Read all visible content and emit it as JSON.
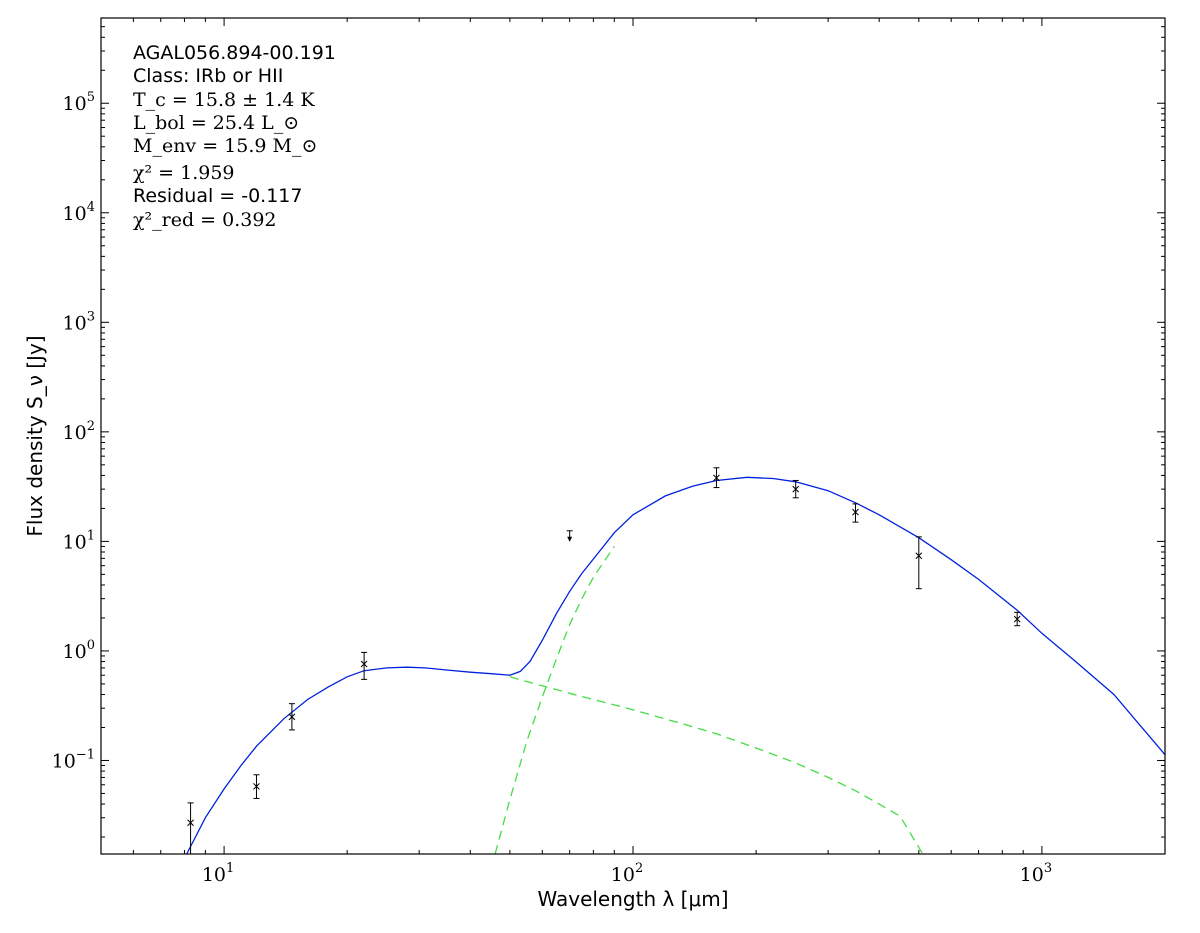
{
  "chart_data": {
    "type": "line",
    "x_scale": "log",
    "y_scale": "log",
    "xlim": [
      5,
      2000
    ],
    "ylim": [
      0.014,
      600000
    ],
    "xlabel": "Wavelength λ [μm]",
    "ylabel": "Flux density S_ν [Jy]",
    "x_ticks": [
      {
        "value": 10,
        "base": "10",
        "exp": "1"
      },
      {
        "value": 100,
        "base": "10",
        "exp": "2"
      },
      {
        "value": 1000,
        "base": "10",
        "exp": "3"
      }
    ],
    "y_ticks": [
      {
        "value": 0.1,
        "base": "10",
        "exp": "−1"
      },
      {
        "value": 1,
        "base": "10",
        "exp": "0"
      },
      {
        "value": 10,
        "base": "10",
        "exp": "1"
      },
      {
        "value": 100,
        "base": "10",
        "exp": "2"
      },
      {
        "value": 1000,
        "base": "10",
        "exp": "3"
      },
      {
        "value": 10000,
        "base": "10",
        "exp": "4"
      },
      {
        "value": 100000,
        "base": "10",
        "exp": "5"
      }
    ],
    "grid": false,
    "annotations": {
      "source": "AGAL056.894-00.191",
      "class_text": "Class: IRb or HII",
      "tc_text": "T_c = 15.8 ± 1.4 K",
      "lbol_text": "L_bol = 25.4 L_⊙",
      "menv_text": "M_env = 15.9 M_⊙",
      "chi2_text": "χ² = 1.959",
      "residual_text": "Residual = -0.117",
      "chi2red_text": "χ²_red = 0.392"
    },
    "colors": {
      "total_fit": "#0022dd",
      "components": "#44dd44",
      "points": "#000000"
    },
    "data_points": [
      {
        "x": 8.28,
        "y": 0.027,
        "yerr_low": 0.0125,
        "yerr_high": 0.041
      },
      {
        "x": 12,
        "y": 0.058,
        "yerr_low": 0.045,
        "yerr_high": 0.074
      },
      {
        "x": 14.65,
        "y": 0.25,
        "yerr_low": 0.19,
        "yerr_high": 0.33
      },
      {
        "x": 22,
        "y": 0.76,
        "yerr_low": 0.55,
        "yerr_high": 0.97
      },
      {
        "x": 160,
        "y": 38,
        "yerr_low": 31,
        "yerr_high": 47
      },
      {
        "x": 250,
        "y": 30,
        "yerr_low": 25,
        "yerr_high": 36
      },
      {
        "x": 350,
        "y": 18.5,
        "yerr_low": 15,
        "yerr_high": 22
      },
      {
        "x": 500,
        "y": 7.4,
        "yerr_low": 3.7,
        "yerr_high": 11
      },
      {
        "x": 870,
        "y": 1.95,
        "yerr_low": 1.7,
        "yerr_high": 2.25
      }
    ],
    "upper_limits": [
      {
        "x": 70,
        "y": 12.5
      }
    ],
    "series": [
      {
        "style": "solid",
        "x": [
          8.1,
          9,
          10,
          11,
          12,
          14,
          16,
          18,
          20,
          22,
          25,
          28,
          31,
          35,
          40,
          45,
          50,
          53,
          56,
          60,
          65,
          70,
          75,
          80,
          90,
          100,
          120,
          140,
          160,
          190,
          220,
          250,
          300,
          350,
          400,
          500,
          600,
          700,
          870,
          1000,
          1200,
          1500,
          2000
        ],
        "y": [
          0.0135,
          0.03,
          0.055,
          0.09,
          0.135,
          0.24,
          0.36,
          0.47,
          0.58,
          0.66,
          0.7,
          0.71,
          0.7,
          0.67,
          0.64,
          0.62,
          0.6,
          0.65,
          0.8,
          1.25,
          2.2,
          3.5,
          5.1,
          6.9,
          12,
          17.5,
          26,
          32,
          36,
          38.5,
          37.5,
          35,
          29,
          22.5,
          17.5,
          10.8,
          6.8,
          4.5,
          2.35,
          1.45,
          0.82,
          0.4,
          0.113
        ]
      },
      {
        "style": "dashed",
        "x": [
          50,
          60,
          70,
          80,
          100,
          130,
          160,
          200,
          250,
          300,
          350,
          400,
          450,
          510
        ],
        "y": [
          0.58,
          0.48,
          0.41,
          0.36,
          0.29,
          0.22,
          0.175,
          0.13,
          0.095,
          0.07,
          0.053,
          0.04,
          0.031,
          0.0142
        ]
      },
      {
        "style": "dashed",
        "x": [
          46,
          50,
          55,
          60,
          65,
          70,
          75,
          80,
          90
        ],
        "y": [
          0.014,
          0.044,
          0.15,
          0.38,
          0.85,
          1.75,
          3.0,
          4.7,
          9.0
        ]
      }
    ]
  }
}
